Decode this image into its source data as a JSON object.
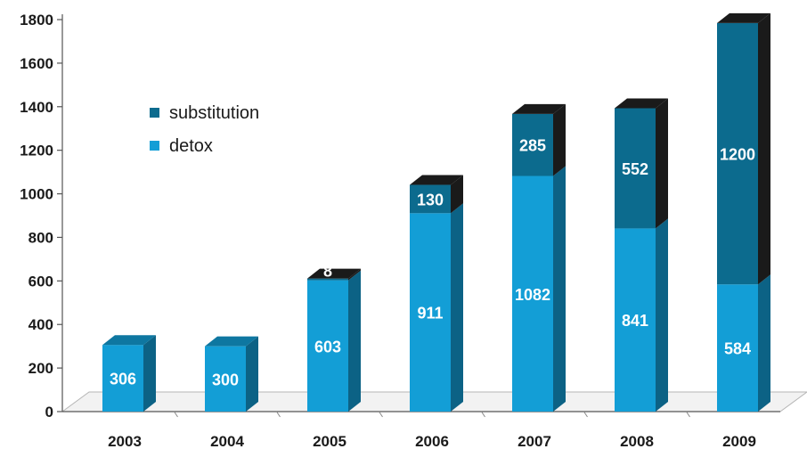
{
  "chart_data": {
    "type": "bar",
    "stacked": true,
    "three_d": true,
    "categories": [
      "2003",
      "2004",
      "2005",
      "2006",
      "2007",
      "2008",
      "2009"
    ],
    "series": [
      {
        "name": "detox",
        "values": [
          306,
          300,
          603,
          911,
          1082,
          841,
          584
        ],
        "color": "#139ed6"
      },
      {
        "name": "substitution",
        "values": [
          0,
          0,
          8,
          130,
          285,
          552,
          1200
        ],
        "color": "#0c6b8e"
      }
    ],
    "data_labels": {
      "detox": [
        "306",
        "300",
        "603",
        "911",
        "1082",
        "841",
        "584"
      ],
      "substitution": [
        "",
        "",
        "8",
        "130",
        "285",
        "552",
        "1200"
      ]
    },
    "y_ticks": [
      "0",
      "200",
      "400",
      "600",
      "800",
      "1000",
      "1200",
      "1400",
      "1600",
      "1800"
    ],
    "ylim": [
      0,
      1800
    ],
    "legend": {
      "position": "upper-left",
      "order": [
        "substitution",
        "detox"
      ]
    },
    "grid": false,
    "title": "",
    "xlabel": "",
    "ylabel": ""
  }
}
